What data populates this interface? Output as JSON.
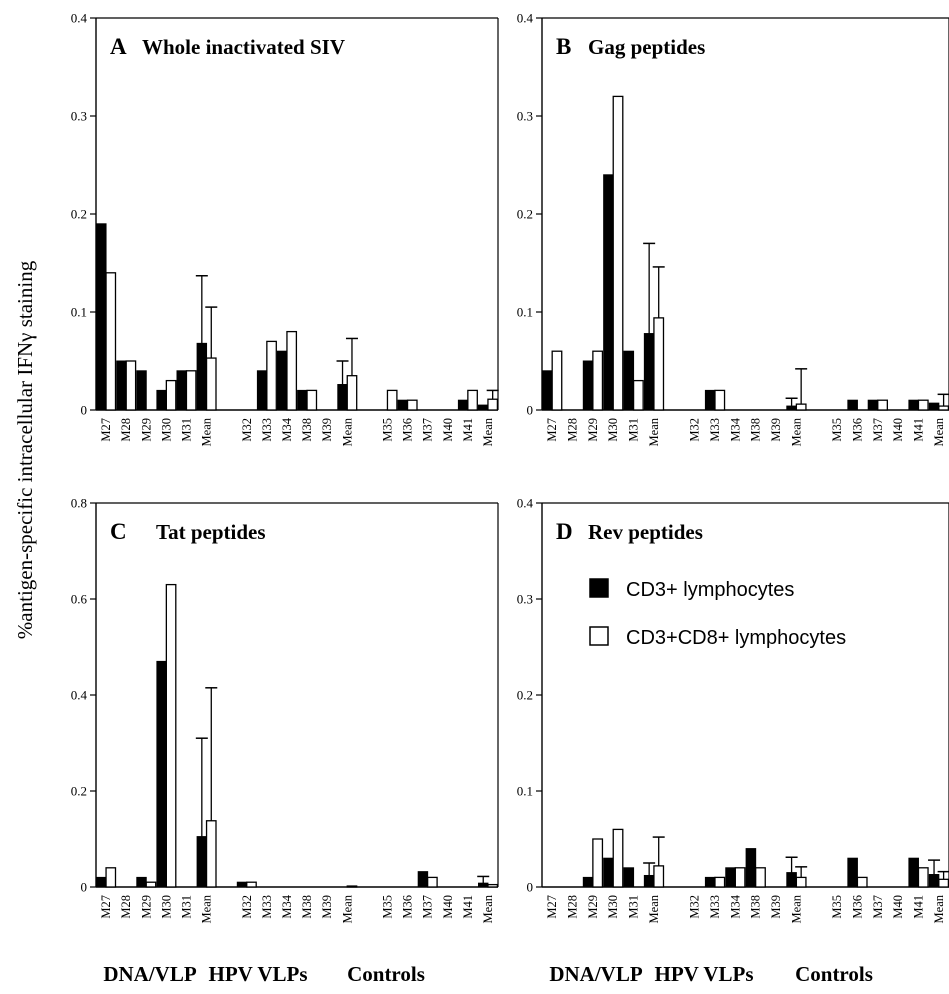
{
  "figure": {
    "ylabel": "%antigen-specific intracellular IFNγ staining",
    "group_labels": [
      "DNA/VLP",
      "HPV VLPs",
      "Controls"
    ],
    "categories": [
      "M27",
      "M28",
      "M29",
      "M30",
      "M31",
      "Mean",
      "M32",
      "M33",
      "M34",
      "M38",
      "M39",
      "Mean",
      "M35",
      "M36",
      "M37",
      "M40",
      "M41",
      "Mean"
    ],
    "legend": [
      {
        "label": "CD3+ lymphocytes",
        "color": "#000000"
      },
      {
        "label": "CD3+CD8+ lymphocytes",
        "color": "#ffffff"
      }
    ]
  },
  "chart_data": [
    {
      "type": "bar",
      "panel": "A",
      "title": "Whole inactivated SIV",
      "ylim": [
        0,
        0.4
      ],
      "yticks": [
        "0",
        "0.1",
        "0.2",
        "0.3",
        "0.4"
      ],
      "series": [
        {
          "name": "CD3+ lymphocytes",
          "values": [
            0.19,
            0,
            0.04,
            0.02,
            0.04,
            0.068,
            0,
            0.04,
            0.06,
            0.02,
            0,
            0.026,
            0,
            0.01,
            0,
            0,
            0.01,
            0.005
          ]
        },
        {
          "name": "CD3+CD8+ lymphocytes",
          "values": [
            0.14,
            0.05,
            0,
            0.03,
            0.04,
            0.053,
            0,
            0.07,
            0.08,
            0.02,
            0,
            0.035,
            0.02,
            0.01,
            0,
            0,
            0.02,
            0.011
          ]
        }
      ],
      "extra_black": {
        "1": 0.05
      },
      "errors": [
        {
          "index": 5,
          "series": 0,
          "value": 0.137
        },
        {
          "index": 5,
          "series": 1,
          "value": 0.105
        },
        {
          "index": 11,
          "series": 0,
          "value": 0.05
        },
        {
          "index": 11,
          "series": 1,
          "value": 0.073
        },
        {
          "index": 17,
          "series": 1,
          "value": 0.02
        }
      ]
    },
    {
      "type": "bar",
      "panel": "B",
      "title": "Gag peptides",
      "ylim": [
        0,
        0.4
      ],
      "yticks": [
        "0",
        "0.1",
        "0.2",
        "0.3",
        "0.4"
      ],
      "series": [
        {
          "name": "CD3+ lymphocytes",
          "values": [
            0.04,
            0,
            0.05,
            0.24,
            0.06,
            0.078,
            0,
            0.02,
            0,
            0,
            0,
            0.004,
            0,
            0.01,
            0.01,
            0,
            0.01,
            0.007
          ]
        },
        {
          "name": "CD3+CD8+ lymphocytes",
          "values": [
            0.06,
            0,
            0.06,
            0.32,
            0.03,
            0.094,
            0,
            0.02,
            0,
            0,
            0,
            0.006,
            0,
            0,
            0.01,
            0,
            0.01,
            0.004
          ]
        }
      ],
      "errors": [
        {
          "index": 5,
          "series": 0,
          "value": 0.17
        },
        {
          "index": 5,
          "series": 1,
          "value": 0.146
        },
        {
          "index": 11,
          "series": 0,
          "value": 0.012
        },
        {
          "index": 11,
          "series": 1,
          "value": 0.042
        },
        {
          "index": 17,
          "series": 1,
          "value": 0.016
        }
      ]
    },
    {
      "type": "bar",
      "panel": "C",
      "title": "Tat peptides",
      "ylim": [
        0,
        0.8
      ],
      "yticks": [
        "0",
        "0.2",
        "0.4",
        "0.6",
        "0.8"
      ],
      "series": [
        {
          "name": "CD3+ lymphocytes",
          "values": [
            0.02,
            0,
            0.02,
            0.47,
            0,
            0.105,
            0.01,
            0,
            0,
            0,
            0,
            0,
            0,
            0,
            0.032,
            0,
            0,
            0.008
          ]
        },
        {
          "name": "CD3+CD8+ lymphocytes",
          "values": [
            0.04,
            0,
            0.01,
            0.63,
            0,
            0.138,
            0.01,
            0,
            0,
            0,
            0,
            0.002,
            0,
            0,
            0.02,
            0,
            0,
            0.005
          ]
        }
      ],
      "errors": [
        {
          "index": 5,
          "series": 0,
          "value": 0.31
        },
        {
          "index": 5,
          "series": 1,
          "value": 0.415
        },
        {
          "index": 17,
          "series": 0,
          "value": 0.022
        }
      ]
    },
    {
      "type": "bar",
      "panel": "D",
      "title": "Rev peptides",
      "ylim": [
        0,
        0.4
      ],
      "yticks": [
        "0",
        "0.1",
        "0.2",
        "0.3",
        "0.4"
      ],
      "series": [
        {
          "name": "CD3+ lymphocytes",
          "values": [
            0,
            0,
            0.01,
            0.03,
            0.02,
            0.012,
            0,
            0.01,
            0.02,
            0.04,
            0,
            0.015,
            0,
            0.03,
            0,
            0,
            0.03,
            0.013
          ]
        },
        {
          "name": "CD3+CD8+ lymphocytes",
          "values": [
            0,
            0,
            0.05,
            0.06,
            0,
            0.022,
            0,
            0.01,
            0.02,
            0.02,
            0,
            0.01,
            0,
            0.01,
            0,
            0,
            0.02,
            0.008
          ]
        }
      ],
      "errors": [
        {
          "index": 5,
          "series": 0,
          "value": 0.025
        },
        {
          "index": 5,
          "series": 1,
          "value": 0.052
        },
        {
          "index": 11,
          "series": 0,
          "value": 0.031
        },
        {
          "index": 11,
          "series": 1,
          "value": 0.021
        },
        {
          "index": 17,
          "series": 0,
          "value": 0.028
        },
        {
          "index": 17,
          "series": 1,
          "value": 0.016
        }
      ],
      "show_legend": true
    }
  ]
}
